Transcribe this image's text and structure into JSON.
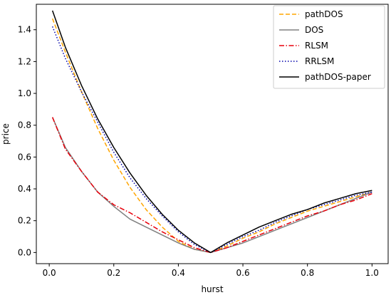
{
  "chart_data": {
    "type": "line",
    "title": "",
    "xlabel": "hurst",
    "ylabel": "price",
    "xlim": [
      -0.04,
      1.05
    ],
    "ylim": [
      -0.07,
      1.56
    ],
    "xticks": [
      0.0,
      0.2,
      0.4,
      0.6,
      0.8,
      1.0
    ],
    "xtick_labels": [
      "0.0",
      "0.2",
      "0.4",
      "0.6",
      "0.8",
      "1.0"
    ],
    "yticks": [
      0.0,
      0.2,
      0.4,
      0.6,
      0.8,
      1.0,
      1.2,
      1.4
    ],
    "ytick_labels": [
      "0.0",
      "0.2",
      "0.4",
      "0.6",
      "0.8",
      "1.0",
      "1.2",
      "1.4"
    ],
    "grid": false,
    "legend_position": "top-right",
    "x": [
      0.01,
      0.05,
      0.1,
      0.15,
      0.2,
      0.25,
      0.3,
      0.35,
      0.4,
      0.45,
      0.5,
      0.55,
      0.6,
      0.65,
      0.7,
      0.75,
      0.8,
      0.85,
      0.9,
      0.95,
      1.0
    ],
    "series": [
      {
        "name": "pathDOS",
        "color": "#ffa500",
        "dash": "dashed",
        "values": [
          1.47,
          1.26,
          1.01,
          0.78,
          0.58,
          0.41,
          0.27,
          0.16,
          0.07,
          0.02,
          0.0,
          0.04,
          0.09,
          0.13,
          0.18,
          0.22,
          0.26,
          0.29,
          0.32,
          0.35,
          0.38
        ]
      },
      {
        "name": "DOS",
        "color": "#808080",
        "dash": "solid",
        "values": [
          0.85,
          0.66,
          0.51,
          0.38,
          0.29,
          0.21,
          0.16,
          0.11,
          0.06,
          0.02,
          0.0,
          0.03,
          0.06,
          0.1,
          0.14,
          0.18,
          0.22,
          0.26,
          0.3,
          0.34,
          0.38
        ]
      },
      {
        "name": "RLSM",
        "color": "#e8000b",
        "dash": "dashdot",
        "values": [
          0.85,
          0.65,
          0.51,
          0.38,
          0.3,
          0.25,
          0.19,
          0.13,
          0.08,
          0.03,
          0.0,
          0.03,
          0.07,
          0.11,
          0.15,
          0.19,
          0.23,
          0.26,
          0.3,
          0.33,
          0.37
        ]
      },
      {
        "name": "RRLSM",
        "color": "#0000aa",
        "dash": "dotted",
        "values": [
          1.42,
          1.22,
          1.01,
          0.82,
          0.63,
          0.47,
          0.34,
          0.23,
          0.13,
          0.05,
          0.0,
          0.05,
          0.1,
          0.14,
          0.19,
          0.23,
          0.27,
          0.3,
          0.33,
          0.36,
          0.38
        ]
      },
      {
        "name": "pathDOS-paper",
        "color": "#000000",
        "dash": "solid",
        "values": [
          1.52,
          1.29,
          1.05,
          0.84,
          0.66,
          0.5,
          0.36,
          0.24,
          0.14,
          0.06,
          0.0,
          0.06,
          0.11,
          0.16,
          0.2,
          0.24,
          0.27,
          0.31,
          0.34,
          0.37,
          0.39
        ]
      }
    ]
  }
}
